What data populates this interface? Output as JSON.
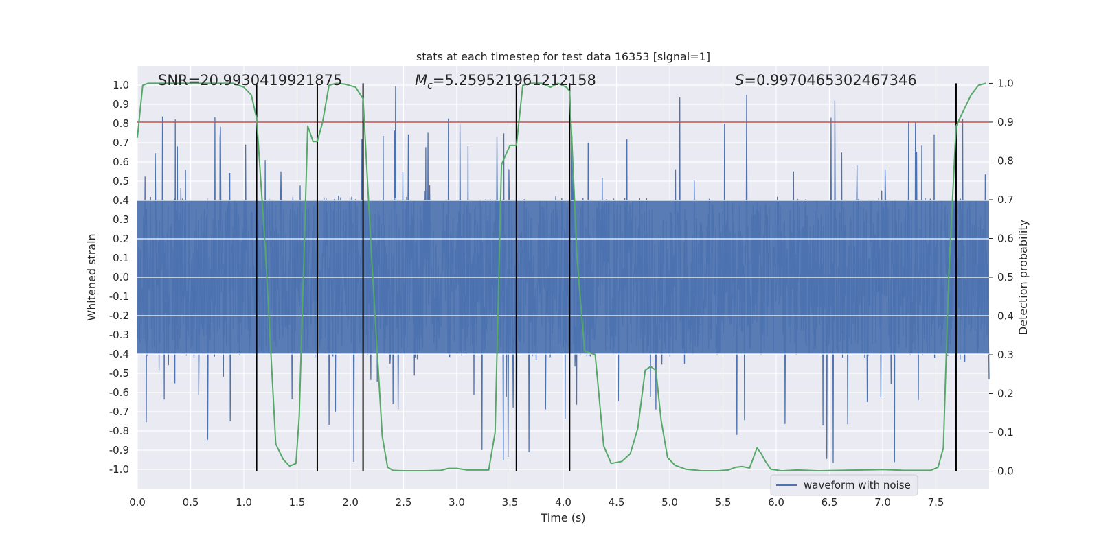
{
  "chart_data": {
    "type": "line",
    "title": "stats at each timestep for test data 16353 [signal=1]",
    "xlabel": "Time (s)",
    "ylabel": "Whitened strain",
    "y2label": "Detection probability",
    "xlim": [
      0.0,
      8.0
    ],
    "ylim": [
      -1.1,
      1.1
    ],
    "y2lim": [
      -0.045,
      1.045
    ],
    "x_ticks": [
      "0.0",
      "0.5",
      "1.0",
      "1.5",
      "2.0",
      "2.5",
      "3.0",
      "3.5",
      "4.0",
      "4.5",
      "5.0",
      "5.5",
      "6.0",
      "6.5",
      "7.0",
      "7.5"
    ],
    "y_ticks": [
      "1.0",
      "0.9",
      "0.8",
      "0.7",
      "0.6",
      "0.5",
      "0.4",
      "0.3",
      "0.2",
      "0.1",
      "0.0",
      "-0.1",
      "-0.2",
      "-0.3",
      "-0.4",
      "-0.5",
      "-0.6",
      "-0.7",
      "-0.8",
      "-0.9",
      "-1.0"
    ],
    "y2_ticks": [
      "1.0",
      "0.9",
      "0.8",
      "0.7",
      "0.6",
      "0.5",
      "0.4",
      "0.3",
      "0.2",
      "0.1",
      "0.0"
    ],
    "grid": true,
    "legend": {
      "position": "lower-right",
      "entries": [
        {
          "label": "waveform with noise",
          "color": "#4c72b0"
        }
      ]
    },
    "annotations": {
      "snr": "SNR=20.9930419921875",
      "mc_symbol": "M",
      "mc_sub": "c",
      "mc_value": "=5.259521961212158",
      "s_symbol": "S",
      "s_value": "=0.9970465302467346"
    },
    "threshold": {
      "value": 0.9,
      "axis": "right",
      "color": "#c44e52"
    },
    "vlines": [
      1.12,
      1.69,
      2.12,
      3.56,
      4.06,
      7.69
    ],
    "series": [
      {
        "name": "waveform with noise",
        "color": "#4c72b0",
        "axis": "left",
        "description": "whitened strain noise, samples spanning approx -0.99 to 1.0",
        "envelope": {
          "x": [
            0.0,
            8.0
          ],
          "min": -0.99,
          "max": 1.0,
          "typical_amplitude": 0.42
        }
      },
      {
        "name": "detection probability",
        "color": "#55a868",
        "axis": "right",
        "x": [
          0.0,
          0.05,
          0.1,
          0.2,
          0.3,
          0.5,
          0.7,
          0.9,
          1.0,
          1.07,
          1.12,
          1.2,
          1.3,
          1.37,
          1.43,
          1.49,
          1.52,
          1.56,
          1.6,
          1.65,
          1.69,
          1.74,
          1.8,
          1.87,
          1.95,
          2.05,
          2.12,
          2.2,
          2.3,
          2.35,
          2.4,
          2.5,
          2.6,
          2.7,
          2.85,
          2.92,
          3.0,
          3.1,
          3.2,
          3.3,
          3.36,
          3.42,
          3.45,
          3.5,
          3.56,
          3.62,
          3.7,
          3.8,
          3.88,
          3.95,
          4.03,
          4.06,
          4.13,
          4.2,
          4.3,
          4.38,
          4.45,
          4.55,
          4.63,
          4.7,
          4.77,
          4.82,
          4.87,
          4.92,
          4.98,
          5.05,
          5.15,
          5.3,
          5.45,
          5.55,
          5.62,
          5.68,
          5.75,
          5.82,
          5.86,
          5.9,
          5.95,
          6.05,
          6.2,
          6.4,
          6.6,
          6.8,
          7.0,
          7.2,
          7.45,
          7.52,
          7.57,
          7.62,
          7.69,
          7.76,
          7.83,
          7.9,
          7.97
        ],
        "values": [
          0.86,
          0.995,
          1.0,
          1.0,
          1.0,
          1.0,
          1.0,
          1.0,
          0.99,
          0.97,
          0.91,
          0.58,
          0.07,
          0.03,
          0.013,
          0.02,
          0.14,
          0.51,
          0.89,
          0.85,
          0.85,
          0.9,
          0.995,
          1.0,
          0.998,
          0.99,
          0.96,
          0.55,
          0.09,
          0.01,
          0.002,
          0.001,
          0.001,
          0.001,
          0.002,
          0.007,
          0.007,
          0.003,
          0.003,
          0.003,
          0.1,
          0.79,
          0.81,
          0.84,
          0.84,
          0.995,
          1.0,
          1.0,
          0.99,
          1.0,
          0.99,
          0.98,
          0.55,
          0.31,
          0.3,
          0.065,
          0.02,
          0.025,
          0.045,
          0.11,
          0.26,
          0.27,
          0.26,
          0.13,
          0.035,
          0.015,
          0.005,
          0.001,
          0.001,
          0.003,
          0.01,
          0.012,
          0.008,
          0.06,
          0.045,
          0.025,
          0.005,
          0.001,
          0.003,
          0.001,
          0.002,
          0.003,
          0.004,
          0.002,
          0.002,
          0.01,
          0.06,
          0.5,
          0.89,
          0.93,
          0.97,
          0.995,
          1.0
        ]
      }
    ]
  }
}
